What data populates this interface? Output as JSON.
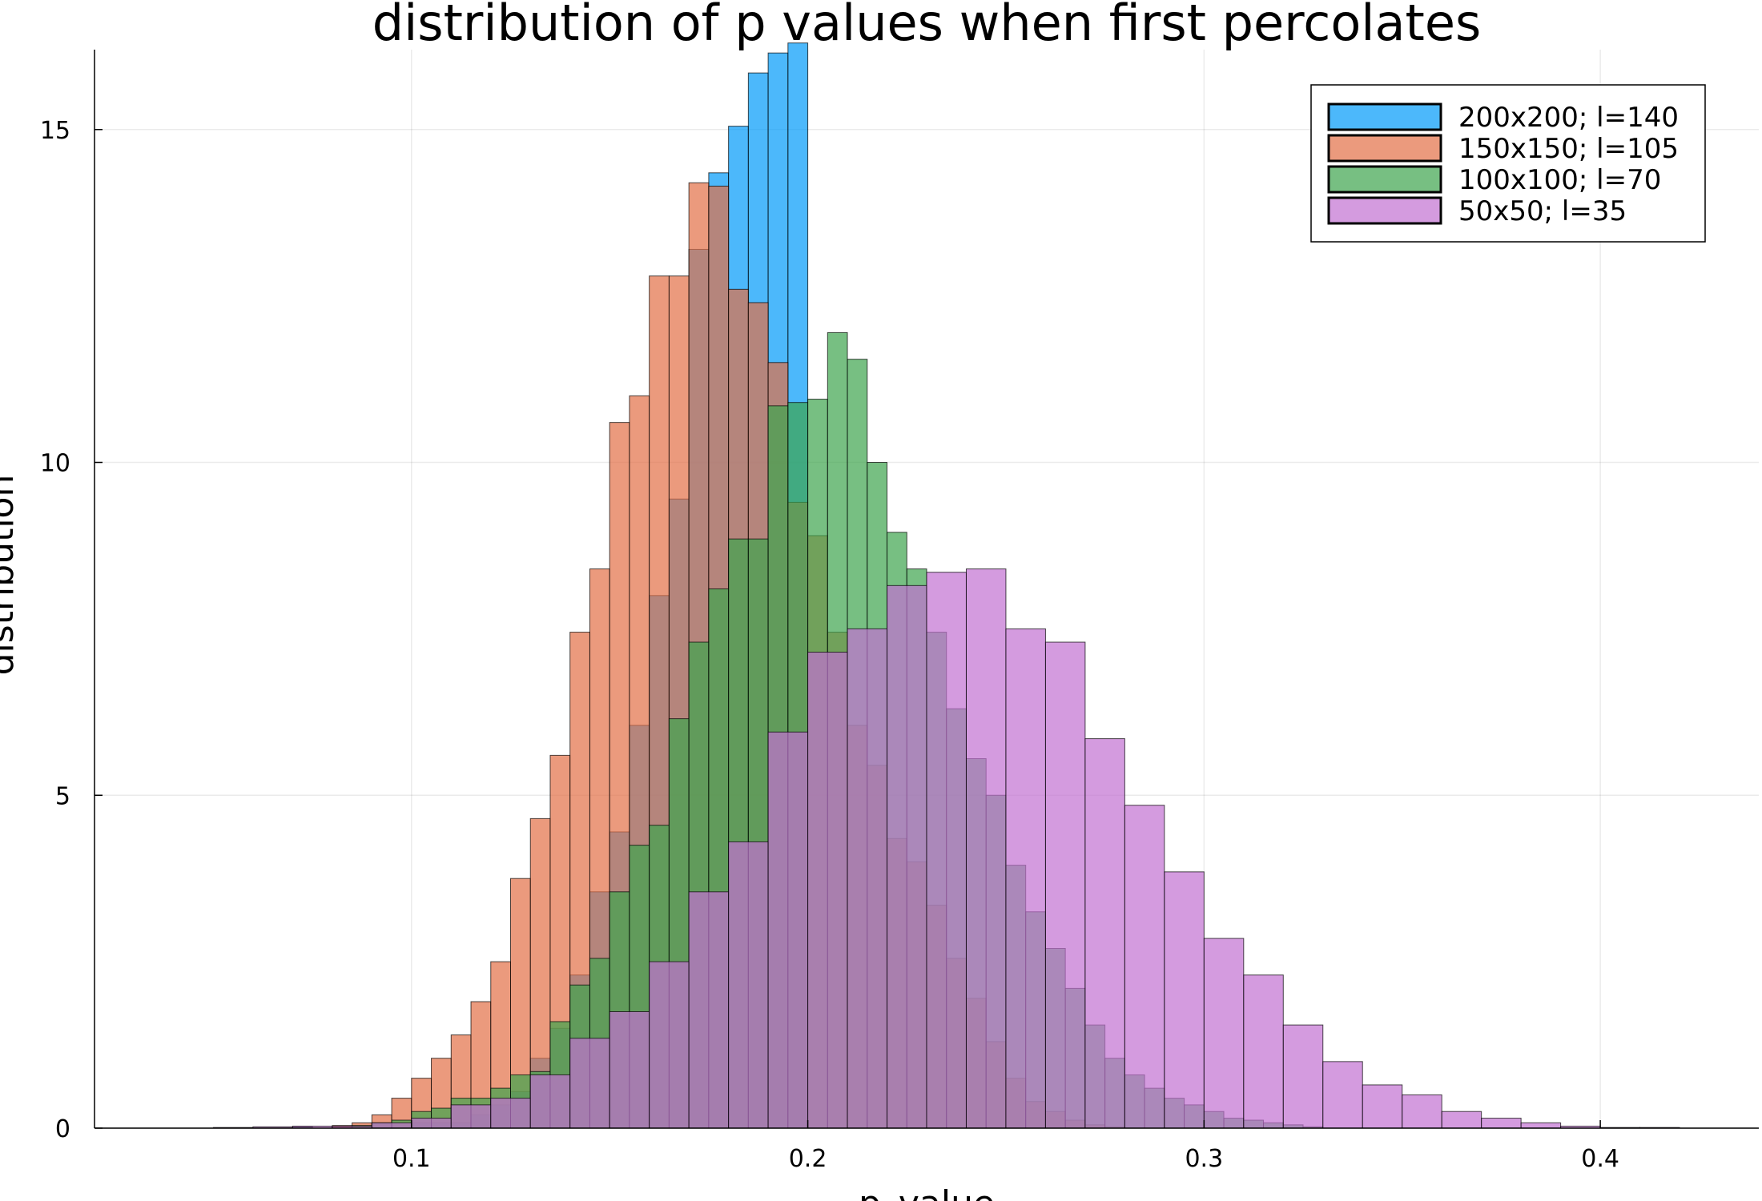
{
  "chart_data": {
    "type": "bar",
    "title": "distribution of p values when first percolates",
    "xlabel": "p_value",
    "ylabel": "distribution",
    "xlim": [
      0.02,
      0.44
    ],
    "ylim": [
      0,
      16.2
    ],
    "xticks": [
      0.1,
      0.2,
      0.3,
      0.4
    ],
    "xtick_labels": [
      "0.1",
      "0.2",
      "0.3",
      "0.4"
    ],
    "yticks": [
      0,
      5,
      10,
      15
    ],
    "ytick_labels": [
      "0",
      "5",
      "10",
      "15"
    ],
    "grid": true,
    "legend_position": "top-right",
    "series": [
      {
        "name": "200x200; l=140",
        "color": "#009af9",
        "bin_start": 0.04,
        "bin_width": 0.005,
        "values": [
          0,
          0,
          0,
          0,
          0,
          0,
          0.02,
          0,
          0.02,
          0,
          0,
          0,
          0.08,
          0.08,
          0.08,
          0.2,
          0.35,
          0.55,
          1.05,
          1.5,
          2.3,
          3.55,
          4.45,
          6.05,
          8.0,
          9.45,
          13.2,
          14.35,
          15.05,
          15.85,
          16.15,
          16.3
        ]
      },
      {
        "name": "150x150; l=105",
        "color": "#e26f46",
        "bin_start": 0.075,
        "bin_width": 0.005,
        "values": [
          0,
          0.04,
          0.08,
          0.2,
          0.45,
          0.75,
          1.05,
          1.4,
          1.9,
          2.5,
          3.75,
          4.65,
          5.6,
          7.45,
          8.4,
          10.6,
          11.0,
          12.8,
          12.8,
          14.2,
          14.15,
          12.6,
          12.4,
          11.5,
          9.4,
          8.9,
          7.45,
          6.05,
          5.45,
          4.35,
          4.0,
          3.35,
          2.55,
          1.95,
          1.3,
          0.75,
          0.4,
          0.25,
          0.12,
          0.05,
          0.02
        ]
      },
      {
        "name": "100x100; l=70",
        "color": "#3da44d",
        "bin_start": 0.065,
        "bin_width": 0.005,
        "values": [
          0,
          0.02,
          0,
          0,
          0.04,
          0.08,
          0.12,
          0.25,
          0.3,
          0.45,
          0.45,
          0.6,
          0.8,
          0.85,
          1.6,
          2.15,
          2.55,
          3.55,
          4.25,
          4.55,
          6.15,
          7.3,
          8.1,
          8.85,
          8.85,
          10.85,
          10.9,
          10.95,
          11.95,
          11.55,
          10.0,
          8.95,
          8.4,
          7.45,
          6.3,
          5.55,
          5.0,
          3.95,
          3.25,
          2.7,
          2.1,
          1.55,
          1.05,
          0.8,
          0.6,
          0.45,
          0.35,
          0.25,
          0.15,
          0.12,
          0.08,
          0.05,
          0.02
        ]
      },
      {
        "name": "50x50; l=35",
        "color": "#c271d2",
        "bin_start": 0.04,
        "bin_width": 0.01,
        "values": [
          0,
          0.01,
          0.02,
          0.03,
          0.03,
          0.08,
          0.15,
          0.35,
          0.45,
          0.8,
          1.35,
          1.75,
          2.5,
          3.55,
          4.3,
          5.95,
          7.15,
          7.5,
          8.15,
          8.35,
          8.4,
          7.5,
          7.3,
          5.85,
          4.85,
          3.85,
          2.85,
          2.3,
          1.55,
          1.0,
          0.65,
          0.5,
          0.25,
          0.15,
          0.08,
          0.03,
          0.01,
          0.01
        ]
      }
    ]
  }
}
